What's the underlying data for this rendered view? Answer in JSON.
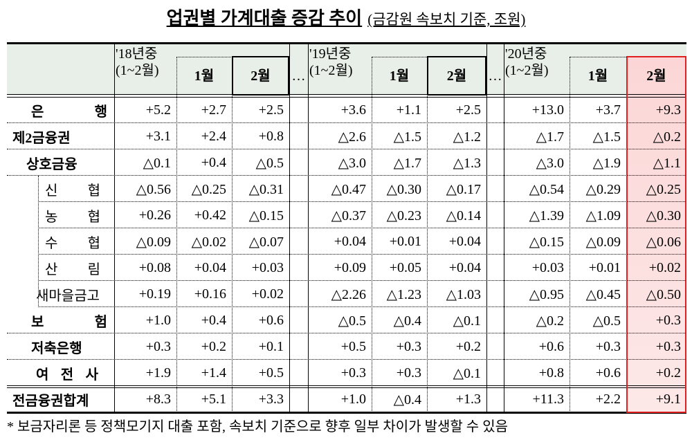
{
  "title": "업권별 가계대출 증감 추이",
  "unit_note": "(금감원 속보치 기준, 조원)",
  "table": {
    "header": [
      "'18년중\n(1~2월)",
      "1월",
      "2월",
      "…",
      "'19년중\n(1~2월)",
      "1월",
      "2월",
      "…",
      "'20년중\n(1~2월)",
      "1월",
      "2월"
    ],
    "rows": [
      {
        "label": "은　　행",
        "cells": [
          "+5.2",
          "+2.7",
          "+2.5",
          "+3.6",
          "+1.1",
          "+2.5",
          "+13.0",
          "+3.7",
          "+9.3"
        ]
      },
      {
        "label": "제2금융권",
        "cells": [
          "+3.1",
          "+2.4",
          "+0.8",
          "△2.6",
          "△1.5",
          "△1.2",
          "△1.7",
          "△1.5",
          "△0.2"
        ]
      },
      {
        "label": "상호금융",
        "cells": [
          "△0.1",
          "+0.4",
          "△0.5",
          "△3.0",
          "△1.7",
          "△1.3",
          "△3.0",
          "△1.9",
          "△1.1"
        ]
      },
      {
        "label": "신　협",
        "cells": [
          "△0.56",
          "△0.25",
          "△0.31",
          "△0.47",
          "△0.30",
          "△0.17",
          "△0.54",
          "△0.29",
          "△0.25"
        ]
      },
      {
        "label": "농　협",
        "cells": [
          "+0.26",
          "+0.42",
          "△0.15",
          "△0.37",
          "△0.23",
          "△0.14",
          "△1.39",
          "△1.09",
          "△0.30"
        ]
      },
      {
        "label": "수　협",
        "cells": [
          "△0.09",
          "△0.02",
          "△0.07",
          "+0.04",
          "+0.01",
          "+0.04",
          "△0.15",
          "△0.09",
          "△0.06"
        ]
      },
      {
        "label": "산　림",
        "cells": [
          "+0.08",
          "+0.04",
          "+0.03",
          "+0.09",
          "+0.05",
          "+0.04",
          "+0.03",
          "+0.01",
          "+0.02"
        ]
      },
      {
        "label": "새마을금고",
        "cells": [
          "+0.19",
          "+0.16",
          "+0.02",
          "△2.26",
          "△1.23",
          "△1.03",
          "△0.95",
          "△0.45",
          "△0.50"
        ]
      },
      {
        "label": "보　　험",
        "cells": [
          "+1.0",
          "+0.4",
          "+0.6",
          "△0.5",
          "△0.4",
          "△0.1",
          "△0.2",
          "△0.5",
          "+0.3"
        ]
      },
      {
        "label": "저축은행",
        "cells": [
          "+0.3",
          "+0.2",
          "+0.1",
          "+0.5",
          "+0.3",
          "+0.2",
          "+0.6",
          "+0.3",
          "+0.3"
        ]
      },
      {
        "label": "여 전 사",
        "cells": [
          "+1.9",
          "+1.4",
          "+0.5",
          "+0.3",
          "+0.3",
          "△0.1",
          "+0.8",
          "+0.6",
          "+0.2"
        ]
      },
      {
        "label": "전금융권합계",
        "cells": [
          "+8.3",
          "+5.1",
          "+3.3",
          "+1.0",
          "△0.4",
          "+1.3",
          "+11.3",
          "+2.2",
          "+9.1"
        ]
      }
    ]
  },
  "footnote": "* 보금자리론 등 정책모기지 대출 포함, 속보치 기준으로 향후 일부 차이가 발생할 수 있음"
}
